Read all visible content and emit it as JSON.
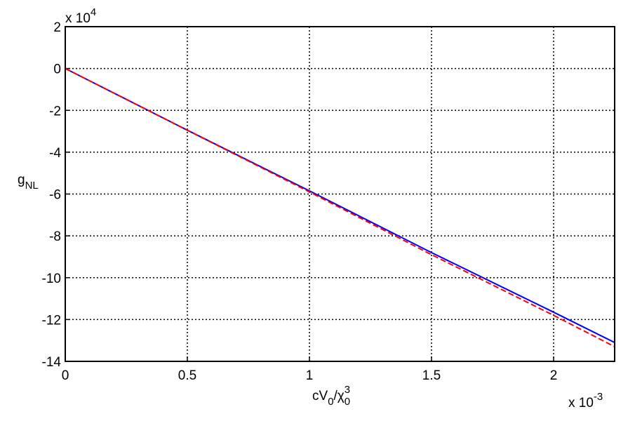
{
  "chart_data": {
    "type": "line",
    "xlabel": [
      {
        "text": "cV"
      },
      {
        "text": "0",
        "sub": true
      },
      {
        "text": "/χ"
      },
      {
        "text": "3",
        "sup": true,
        "over": true
      },
      {
        "text": "0",
        "sub": true
      }
    ],
    "ylabel": [
      {
        "text": "g"
      },
      {
        "text": "NL",
        "sub": true
      }
    ],
    "xmultiplier": [
      {
        "text": "x 10"
      },
      {
        "text": "-3",
        "sup": true
      }
    ],
    "ymultiplier": [
      {
        "text": "x 10"
      },
      {
        "text": "4",
        "sup": true
      }
    ],
    "x": [
      0,
      0.5,
      1,
      1.5,
      2,
      2.25
    ],
    "series": [
      {
        "color": "#0000ff",
        "dash": false,
        "values": [
          0,
          -2.95,
          -5.85,
          -8.8,
          -11.65,
          -13.1
        ]
      },
      {
        "color": "#ff0000",
        "dash": true,
        "values": [
          0,
          -2.95,
          -5.9,
          -8.9,
          -11.8,
          -13.3
        ]
      }
    ],
    "xlim": [
      0,
      2.25
    ],
    "xticks": [
      0,
      0.5,
      1,
      1.5,
      2
    ],
    "ylim": [
      -14,
      2
    ],
    "yticks": [
      -14,
      -12,
      -10,
      -8,
      -6,
      -4,
      -2,
      0,
      2
    ],
    "grid": true
  }
}
